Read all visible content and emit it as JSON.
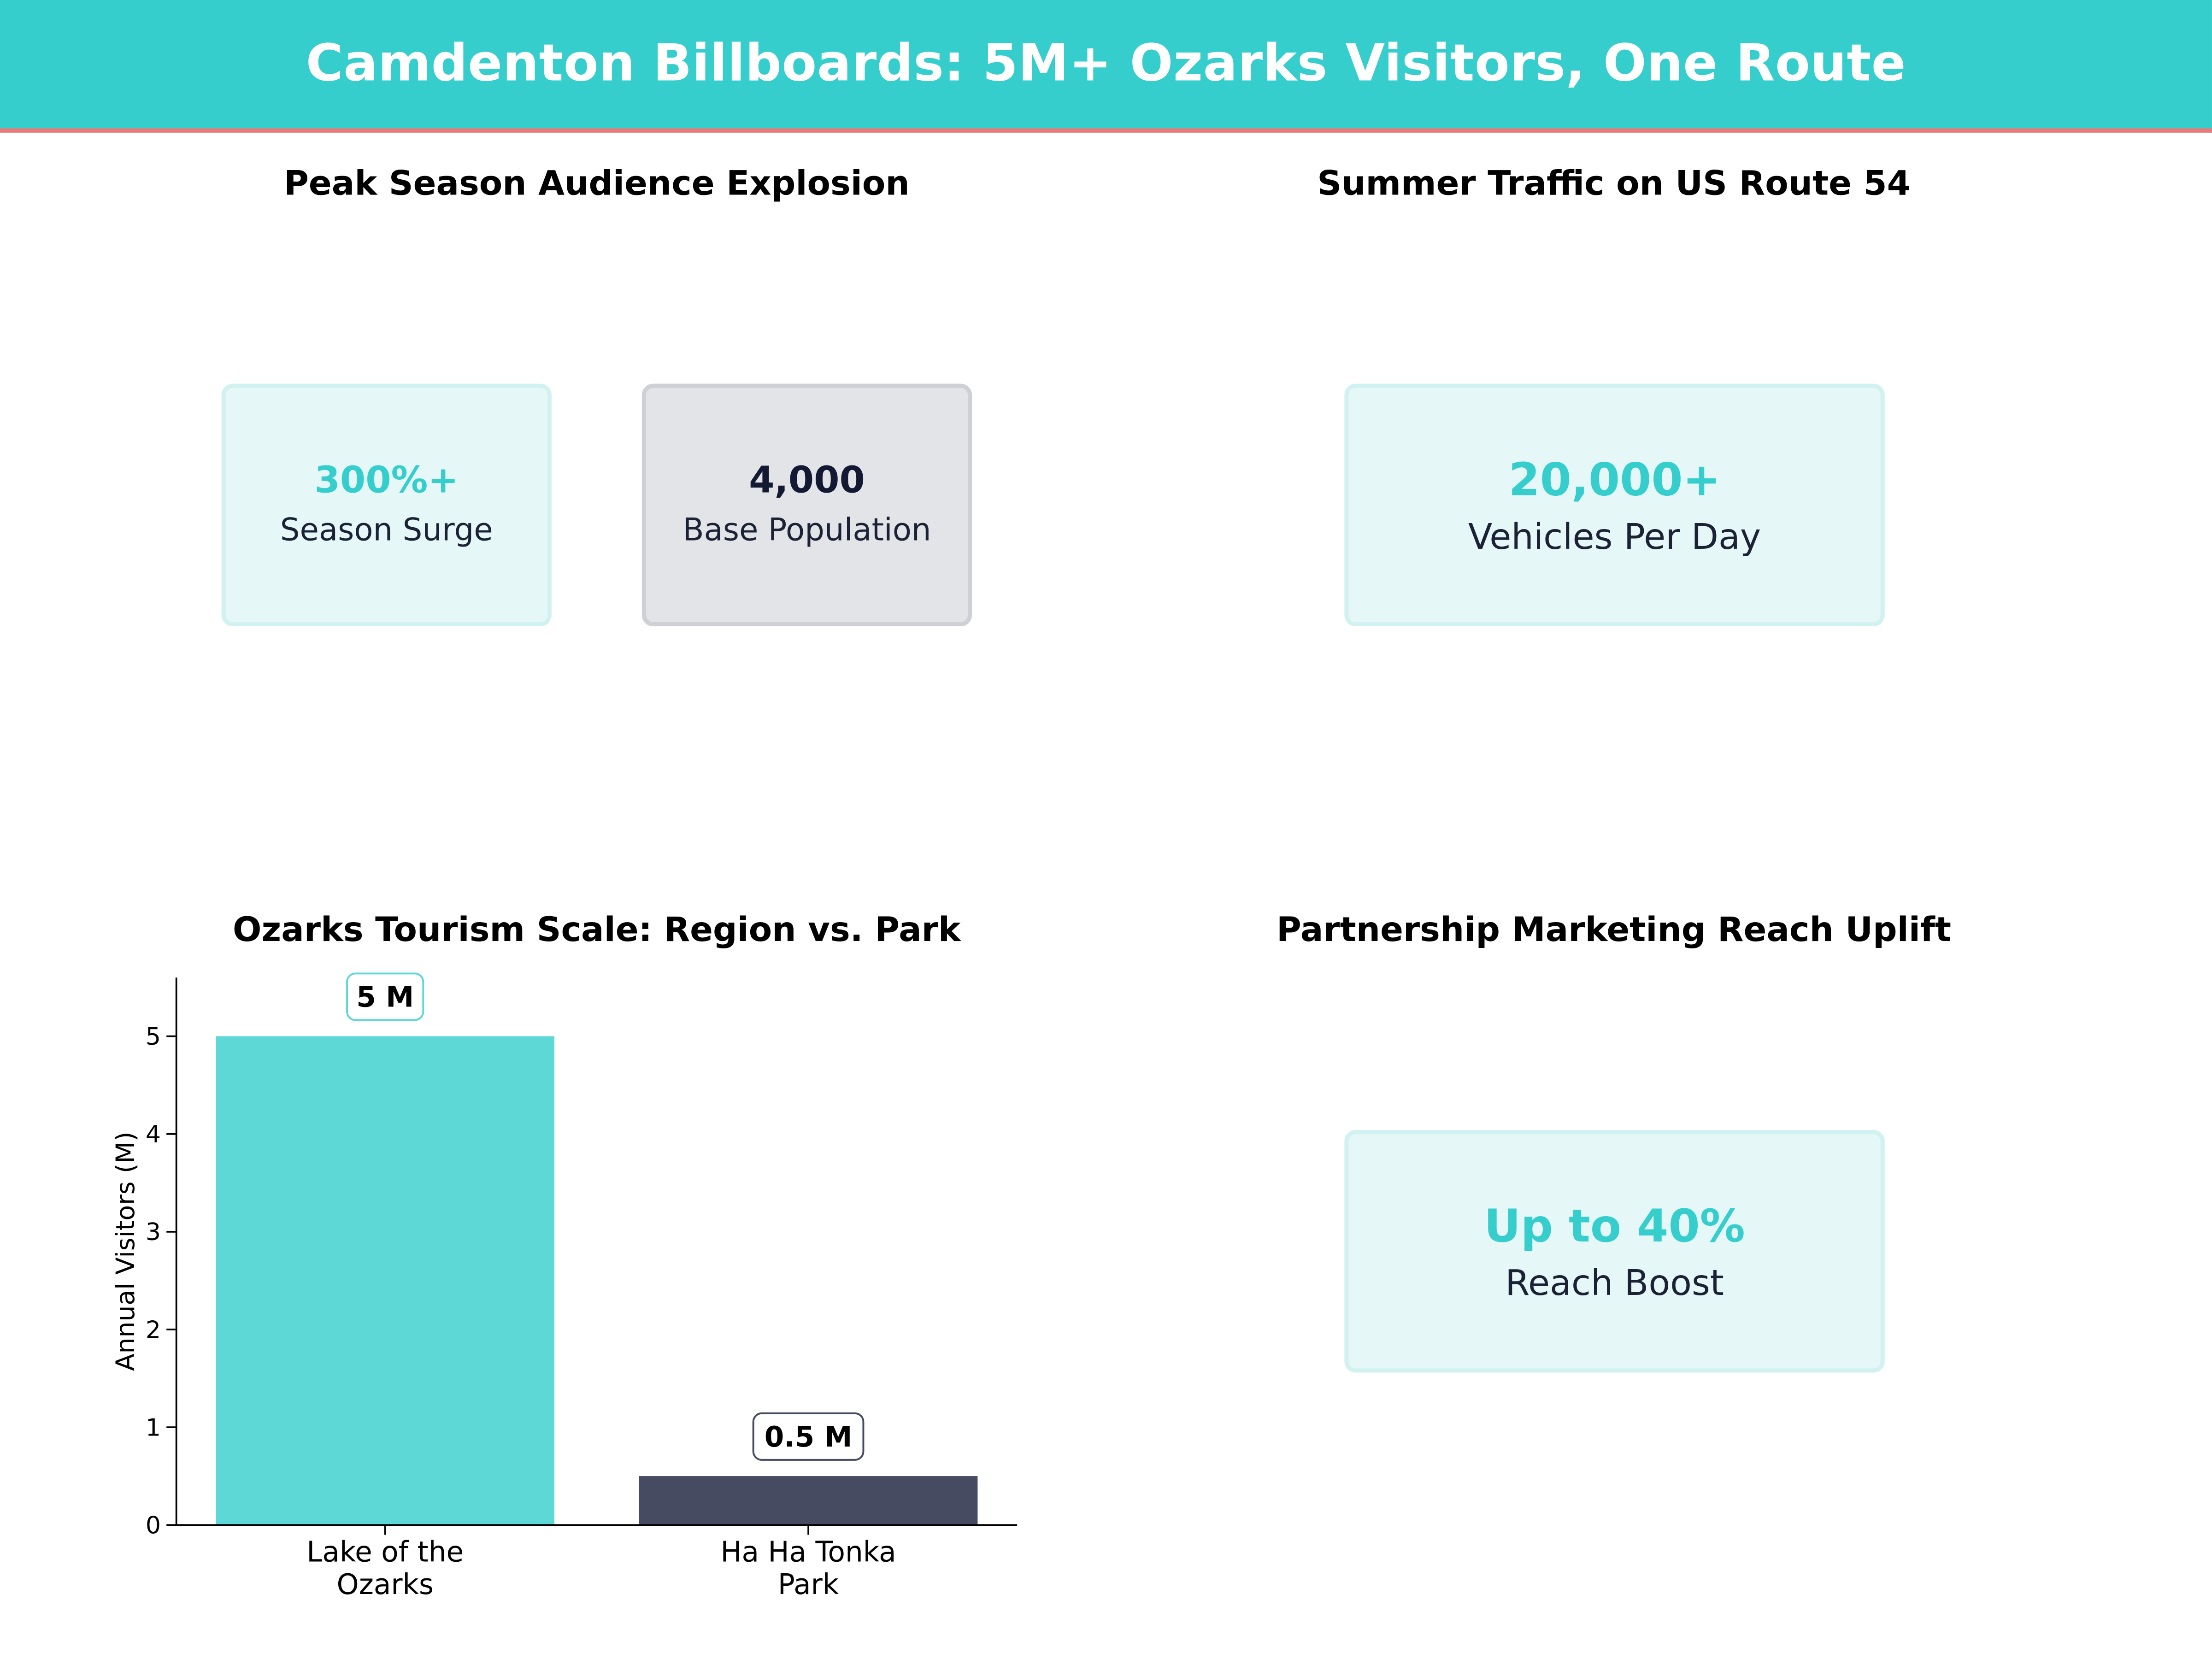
{
  "header": {
    "title": "Camdenton Billboards: 5M+ Ozarks Visitors, One Route"
  },
  "panels": {
    "peak_season": {
      "title": "Peak Season Audience Explosion",
      "cards": [
        {
          "value": "300%+",
          "label": "Season Surge"
        },
        {
          "value": "4,000",
          "label": "Base Population"
        }
      ]
    },
    "traffic": {
      "title": "Summer Traffic on US Route 54",
      "card": {
        "value": "20,000+",
        "label": "Vehicles Per Day"
      }
    },
    "partnership": {
      "title": "Partnership Marketing Reach Uplift",
      "card": {
        "value": "Up to 40%",
        "label": "Reach Boost"
      }
    }
  },
  "colors": {
    "accent": "#36cdcd",
    "bar_lake": "#5ed8d6",
    "bar_park": "#474b62",
    "value_dark": "#141933",
    "label_dark": "#1b2236"
  },
  "chart_data": {
    "type": "bar",
    "title": "Ozarks Tourism Scale: Region vs. Park",
    "categories": [
      [
        "Lake of the",
        "Ozarks"
      ],
      [
        "Ha Ha Tonka",
        "Park"
      ]
    ],
    "values": [
      5,
      0.5
    ],
    "value_labels": [
      "5 M",
      "0.5 M"
    ],
    "xlabel": "",
    "ylabel": "Annual Visitors (M)",
    "ylim": [
      0,
      5.6
    ],
    "yticks": [
      0,
      1,
      2,
      3,
      4,
      5
    ],
    "grid": false
  }
}
